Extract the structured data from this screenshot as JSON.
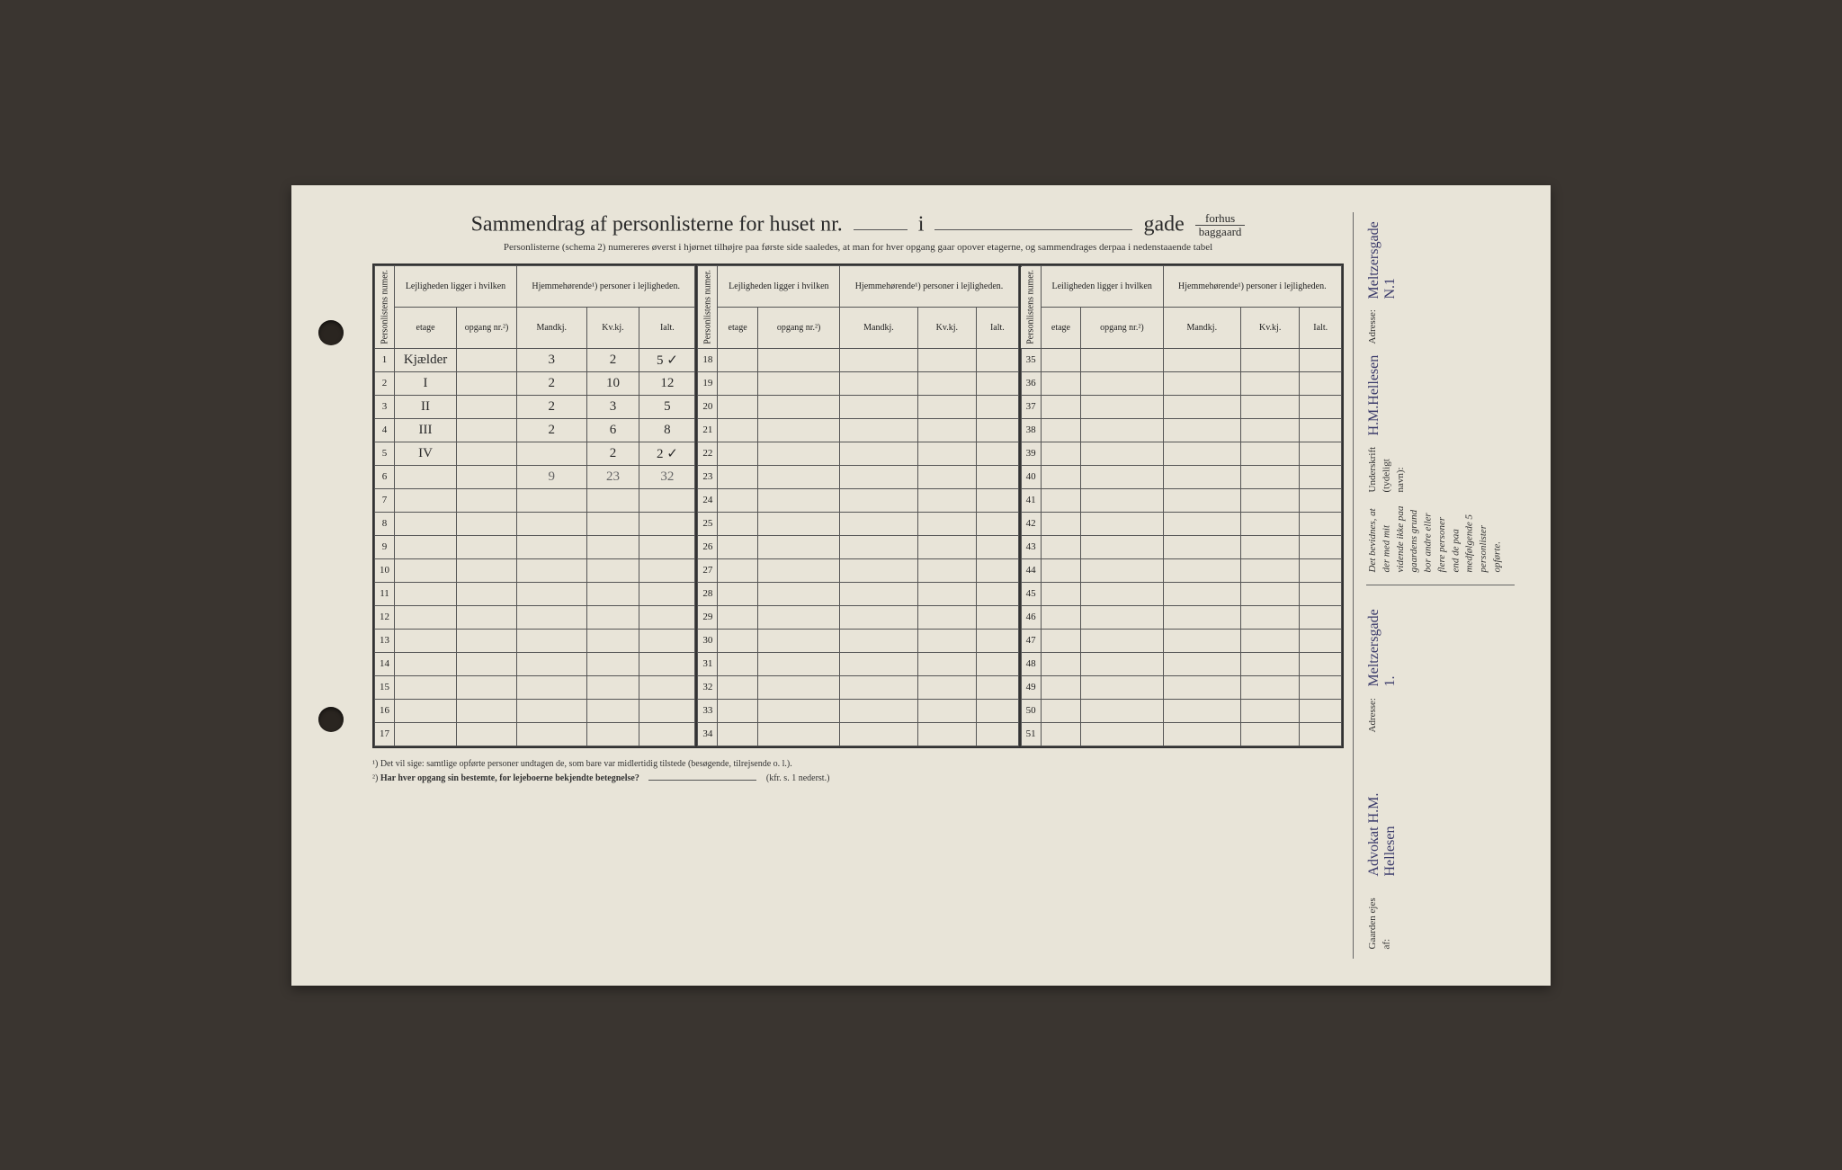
{
  "title": {
    "prefix": "Sammendrag af personlisterne for huset nr.",
    "mid": "i",
    "suffix": "gade",
    "frac_top": "forhus",
    "frac_bottom": "baggaard"
  },
  "subtitle": "Personlisterne (schema 2) numereres øverst i hjørnet tilhøjre paa første side saaledes, at man for hver opgang gaar opover etagerne, og sammendrages derpaa i nedenstaaende tabel",
  "headers": {
    "personlistens_numer": "Personlistens numer.",
    "lejligheden": "Lejligheden ligger i hvilken",
    "leiligheden": "Leiligheden ligger i hvilken",
    "hjemme": "Hjemmehørende¹) personer i lejligheden.",
    "etage": "etage",
    "opgang": "opgang nr.²)",
    "mandkj": "Mandkj.",
    "kvkj": "Kv.kj.",
    "ialt": "Ialt."
  },
  "rows1": [
    {
      "n": "1",
      "etage": "Kjælder",
      "opgang": "",
      "m": "3",
      "k": "2",
      "i": "5 ✓"
    },
    {
      "n": "2",
      "etage": "I",
      "opgang": "",
      "m": "2",
      "k": "10",
      "i": "12"
    },
    {
      "n": "3",
      "etage": "II",
      "opgang": "",
      "m": "2",
      "k": "3",
      "i": "5"
    },
    {
      "n": "4",
      "etage": "III",
      "opgang": "",
      "m": "2",
      "k": "6",
      "i": "8"
    },
    {
      "n": "5",
      "etage": "IV",
      "opgang": "",
      "m": "",
      "k": "2",
      "i": "2 ✓"
    },
    {
      "n": "6",
      "etage": "",
      "opgang": "",
      "m": "9",
      "k": "23",
      "i": "32"
    },
    {
      "n": "7",
      "etage": "",
      "opgang": "",
      "m": "",
      "k": "",
      "i": ""
    },
    {
      "n": "8",
      "etage": "",
      "opgang": "",
      "m": "",
      "k": "",
      "i": ""
    },
    {
      "n": "9",
      "etage": "",
      "opgang": "",
      "m": "",
      "k": "",
      "i": ""
    },
    {
      "n": "10",
      "etage": "",
      "opgang": "",
      "m": "",
      "k": "",
      "i": ""
    },
    {
      "n": "11",
      "etage": "",
      "opgang": "",
      "m": "",
      "k": "",
      "i": ""
    },
    {
      "n": "12",
      "etage": "",
      "opgang": "",
      "m": "",
      "k": "",
      "i": ""
    },
    {
      "n": "13",
      "etage": "",
      "opgang": "",
      "m": "",
      "k": "",
      "i": ""
    },
    {
      "n": "14",
      "etage": "",
      "opgang": "",
      "m": "",
      "k": "",
      "i": ""
    },
    {
      "n": "15",
      "etage": "",
      "opgang": "",
      "m": "",
      "k": "",
      "i": ""
    },
    {
      "n": "16",
      "etage": "",
      "opgang": "",
      "m": "",
      "k": "",
      "i": ""
    },
    {
      "n": "17",
      "etage": "",
      "opgang": "",
      "m": "",
      "k": "",
      "i": ""
    }
  ],
  "rows2_start": 18,
  "rows3_start": 35,
  "footnote1": "¹) Det vil sige: samtlige opførte personer undtagen de, som bare var midlertidig tilstede (besøgende, tilrejsende o. l.).",
  "footnote2_label": "²)",
  "footnote2_text": "Har hver opgang sin bestemte, for lejeboerne bekjendte betegnelse?",
  "footnote2_ref": "(kfr. s. 1 nederst.)",
  "side": {
    "gaarden_ejes": "Gaarden ejes af:",
    "owner_hand": "Advokat H.M. Hellesen",
    "adresse_label": "Adresse:",
    "adresse_hand": "Meltzersgade 1.",
    "bevidnes": "Det bevidnes, at der med mit vidende ikke paa gaardens grund bor andre eller flere personer end de paa medfølgende 5 personlister opførte.",
    "underskrift_label": "Underskrift (tydeligt navn):",
    "underskrift_hand": "H.M.Hellesen",
    "adresse2_hand": "Meltzersgade N.1"
  },
  "colors": {
    "paper": "#e8e4d8",
    "ink": "#2a2a2a",
    "pencil": "#666666",
    "handwriting_blue": "#3a3a6a",
    "border": "#333333"
  }
}
